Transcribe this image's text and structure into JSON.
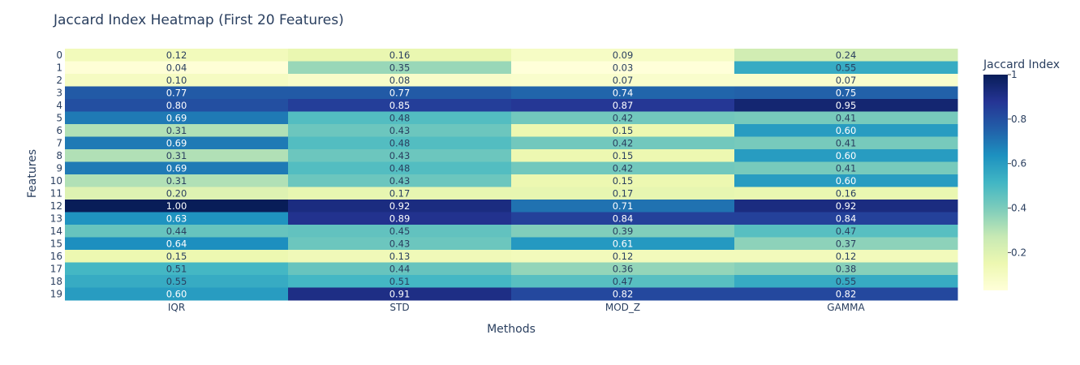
{
  "chart_data": {
    "type": "heatmap",
    "title": "Jaccard Index Heatmap (First 20 Features)",
    "xlabel": "Methods",
    "ylabel": "Features",
    "x": [
      "IQR",
      "STD",
      "MOD_Z",
      "GAMMA"
    ],
    "y": [
      "0",
      "1",
      "2",
      "3",
      "4",
      "5",
      "6",
      "7",
      "8",
      "9",
      "10",
      "11",
      "12",
      "13",
      "14",
      "15",
      "16",
      "17",
      "18",
      "19"
    ],
    "z": [
      [
        0.12,
        0.16,
        0.09,
        0.24
      ],
      [
        0.04,
        0.35,
        0.03,
        0.55
      ],
      [
        0.1,
        0.08,
        0.07,
        0.07
      ],
      [
        0.77,
        0.77,
        0.74,
        0.75
      ],
      [
        0.8,
        0.85,
        0.87,
        0.95
      ],
      [
        0.69,
        0.48,
        0.42,
        0.41
      ],
      [
        0.31,
        0.43,
        0.15,
        0.6
      ],
      [
        0.69,
        0.48,
        0.42,
        0.41
      ],
      [
        0.31,
        0.43,
        0.15,
        0.6
      ],
      [
        0.69,
        0.48,
        0.42,
        0.41
      ],
      [
        0.31,
        0.43,
        0.15,
        0.6
      ],
      [
        0.2,
        0.17,
        0.17,
        0.16
      ],
      [
        1.0,
        0.92,
        0.71,
        0.92
      ],
      [
        0.63,
        0.89,
        0.84,
        0.84
      ],
      [
        0.44,
        0.45,
        0.39,
        0.47
      ],
      [
        0.64,
        0.43,
        0.61,
        0.37
      ],
      [
        0.15,
        0.13,
        0.12,
        0.12
      ],
      [
        0.51,
        0.44,
        0.36,
        0.38
      ],
      [
        0.55,
        0.51,
        0.47,
        0.55
      ],
      [
        0.6,
        0.91,
        0.82,
        0.82
      ]
    ],
    "zmin": 0.03,
    "zmax": 1.0,
    "colorscale": "YlGnBu",
    "colorbar": {
      "title": "Jaccard Index",
      "tickvals": [
        0.2,
        0.4,
        0.6,
        0.8,
        1
      ],
      "ticktext": [
        "0.2",
        "0.4",
        "0.6",
        "0.8",
        "1"
      ]
    }
  }
}
